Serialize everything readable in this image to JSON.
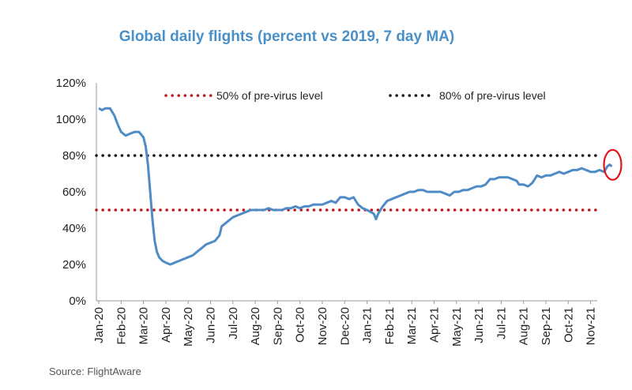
{
  "source": "Source: FlightAware",
  "colors": {
    "title": "#4a90c8",
    "series": "#4f8cc6",
    "ref50": "#c0161c",
    "ref80": "#111111",
    "highlight": "#e0141b"
  },
  "chart_data": {
    "type": "line",
    "title": "Global daily flights (percent vs 2019, 7 day MA)",
    "xlabel": "",
    "ylabel": "",
    "ylim": [
      0,
      120
    ],
    "yticks": [
      "0%",
      "20%",
      "40%",
      "60%",
      "80%",
      "100%",
      "120%"
    ],
    "ytick_values": [
      0,
      20,
      40,
      60,
      80,
      100,
      120
    ],
    "categories": [
      "Jan-20",
      "Feb-20",
      "Mar-20",
      "Apr-20",
      "May-20",
      "Jun-20",
      "Jul-20",
      "Aug-20",
      "Sep-20",
      "Oct-20",
      "Nov-20",
      "Dec-20",
      "Jan-21",
      "Feb-21",
      "Mar-21",
      "Apr-21",
      "May-21",
      "Jun-21",
      "Jul-21",
      "Aug-21",
      "Sep-21",
      "Oct-21",
      "Nov-21"
    ],
    "legend_position": "top",
    "grid": false,
    "reference_lines": [
      {
        "label": "50% of pre-virus level",
        "value": 50,
        "style": "dotted",
        "color": "#c0161c"
      },
      {
        "label": "80% of pre-virus level",
        "value": 80,
        "style": "dotted",
        "color": "#111111"
      }
    ],
    "series": [
      {
        "values": [
          [
            0,
            106
          ],
          [
            0.15,
            105
          ],
          [
            0.3,
            106
          ],
          [
            0.5,
            106
          ],
          [
            0.7,
            102
          ],
          [
            0.85,
            97
          ],
          [
            1.0,
            93
          ],
          [
            1.2,
            91
          ],
          [
            1.4,
            92
          ],
          [
            1.6,
            93
          ],
          [
            1.8,
            93
          ],
          [
            2.0,
            90
          ],
          [
            2.1,
            85
          ],
          [
            2.2,
            75
          ],
          [
            2.3,
            60
          ],
          [
            2.4,
            45
          ],
          [
            2.5,
            33
          ],
          [
            2.6,
            27
          ],
          [
            2.7,
            24
          ],
          [
            2.85,
            22
          ],
          [
            3.0,
            21
          ],
          [
            3.2,
            20
          ],
          [
            3.4,
            21
          ],
          [
            3.6,
            22
          ],
          [
            3.8,
            23
          ],
          [
            4.0,
            24
          ],
          [
            4.2,
            25
          ],
          [
            4.4,
            27
          ],
          [
            4.6,
            29
          ],
          [
            4.8,
            31
          ],
          [
            5.0,
            32
          ],
          [
            5.2,
            33
          ],
          [
            5.4,
            36
          ],
          [
            5.5,
            41
          ],
          [
            5.7,
            43
          ],
          [
            5.9,
            45
          ],
          [
            6.0,
            46
          ],
          [
            6.2,
            47
          ],
          [
            6.4,
            48
          ],
          [
            6.6,
            49
          ],
          [
            6.8,
            50
          ],
          [
            7.0,
            50
          ],
          [
            7.2,
            50
          ],
          [
            7.4,
            50
          ],
          [
            7.6,
            51
          ],
          [
            7.8,
            50
          ],
          [
            8.0,
            50
          ],
          [
            8.2,
            50
          ],
          [
            8.4,
            51
          ],
          [
            8.6,
            51
          ],
          [
            8.8,
            52
          ],
          [
            9.0,
            51
          ],
          [
            9.2,
            52
          ],
          [
            9.4,
            52
          ],
          [
            9.6,
            53
          ],
          [
            9.8,
            53
          ],
          [
            10.0,
            53
          ],
          [
            10.2,
            54
          ],
          [
            10.4,
            55
          ],
          [
            10.6,
            54
          ],
          [
            10.8,
            57
          ],
          [
            11.0,
            57
          ],
          [
            11.2,
            56
          ],
          [
            11.4,
            57
          ],
          [
            11.5,
            55
          ],
          [
            11.6,
            53
          ],
          [
            11.8,
            51
          ],
          [
            12.0,
            50
          ],
          [
            12.15,
            49
          ],
          [
            12.3,
            48
          ],
          [
            12.4,
            45
          ],
          [
            12.5,
            48
          ],
          [
            12.7,
            52
          ],
          [
            12.9,
            55
          ],
          [
            13.1,
            56
          ],
          [
            13.3,
            57
          ],
          [
            13.5,
            58
          ],
          [
            13.7,
            59
          ],
          [
            13.9,
            60
          ],
          [
            14.1,
            60
          ],
          [
            14.3,
            61
          ],
          [
            14.5,
            61
          ],
          [
            14.7,
            60
          ],
          [
            14.9,
            60
          ],
          [
            15.1,
            60
          ],
          [
            15.3,
            60
          ],
          [
            15.5,
            59
          ],
          [
            15.7,
            58
          ],
          [
            15.9,
            60
          ],
          [
            16.1,
            60
          ],
          [
            16.3,
            61
          ],
          [
            16.5,
            61
          ],
          [
            16.7,
            62
          ],
          [
            16.9,
            63
          ],
          [
            17.1,
            63
          ],
          [
            17.3,
            64
          ],
          [
            17.5,
            67
          ],
          [
            17.7,
            67
          ],
          [
            17.9,
            68
          ],
          [
            18.1,
            68
          ],
          [
            18.3,
            68
          ],
          [
            18.5,
            67
          ],
          [
            18.7,
            66
          ],
          [
            18.8,
            64
          ],
          [
            19.0,
            64
          ],
          [
            19.2,
            63
          ],
          [
            19.4,
            65
          ],
          [
            19.5,
            67
          ],
          [
            19.6,
            69
          ],
          [
            19.8,
            68
          ],
          [
            20.0,
            69
          ],
          [
            20.2,
            69
          ],
          [
            20.4,
            70
          ],
          [
            20.6,
            71
          ],
          [
            20.8,
            70
          ],
          [
            21.0,
            71
          ],
          [
            21.2,
            72
          ],
          [
            21.4,
            72
          ],
          [
            21.6,
            73
          ],
          [
            21.8,
            72
          ],
          [
            22.0,
            71
          ],
          [
            22.2,
            71
          ],
          [
            22.4,
            72
          ],
          [
            22.6,
            71
          ],
          [
            22.75,
            74
          ],
          [
            22.85,
            75
          ],
          [
            22.95,
            74
          ]
        ]
      }
    ]
  }
}
